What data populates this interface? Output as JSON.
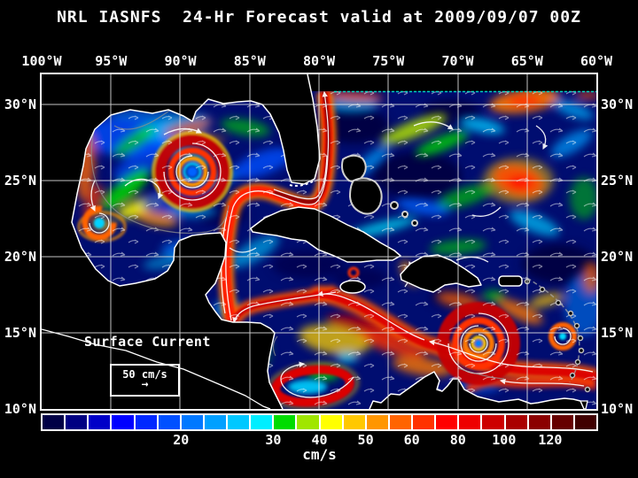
{
  "title": "NRL IASNFS  24-Hr Forecast valid at 2009/09/07 00Z",
  "axes": {
    "longitude_labels": [
      "100°W",
      "95°W",
      "90°W",
      "85°W",
      "80°W",
      "75°W",
      "70°W",
      "65°W",
      "60°W"
    ],
    "latitude_labels": [
      "30°N",
      "25°N",
      "20°N",
      "15°N",
      "10°N"
    ]
  },
  "legend": {
    "label": "Surface Current",
    "scale_value": "50 cm/s",
    "arrow_icon": "→"
  },
  "colorbar": {
    "unit": "cm/s",
    "segment_colors": [
      "#000046",
      "#000082",
      "#0000c8",
      "#0000ff",
      "#0028ff",
      "#0050ff",
      "#0078ff",
      "#00a0ff",
      "#00c8ff",
      "#00eeff",
      "#00dc00",
      "#a0e600",
      "#ffff00",
      "#ffc800",
      "#ff9600",
      "#ff6400",
      "#ff3200",
      "#ff0000",
      "#ee0000",
      "#cd0000",
      "#aa0000",
      "#8b0000",
      "#660000",
      "#400000"
    ],
    "ticks": [
      {
        "label": "20",
        "boundary": 6
      },
      {
        "label": "30",
        "boundary": 10
      },
      {
        "label": "40",
        "boundary": 12
      },
      {
        "label": "50",
        "boundary": 14
      },
      {
        "label": "60",
        "boundary": 16
      },
      {
        "label": "80",
        "boundary": 18
      },
      {
        "label": "100",
        "boundary": 20
      },
      {
        "label": "120",
        "boundary": 22
      }
    ]
  },
  "colors": {
    "background": "#000000",
    "text": "#ffffff",
    "coastline": "#ffffff",
    "grid": "#e8e8e8"
  }
}
